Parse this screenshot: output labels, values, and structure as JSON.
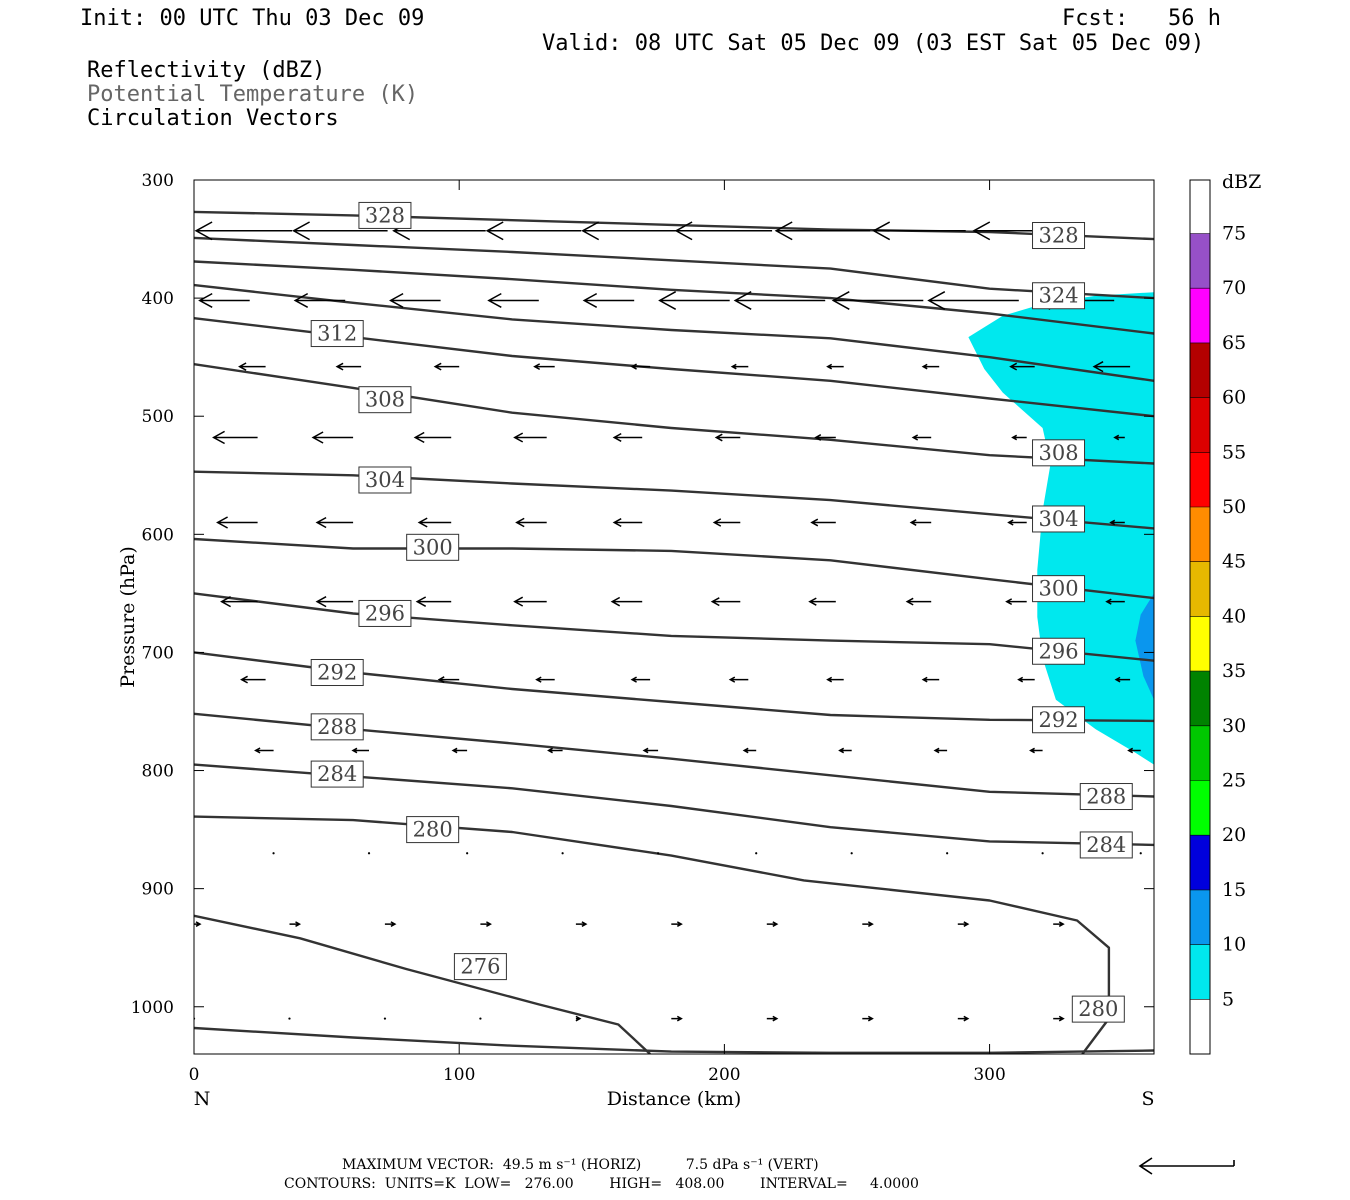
{
  "header": {
    "init": "Init: 00 UTC Thu 03 Dec 09",
    "fcst": "Fcst:   56 h",
    "valid": "Valid: 08 UTC Sat 05 Dec 09 (03 EST Sat 05 Dec 09)"
  },
  "fields": {
    "reflectivity": "Reflectivity (dBZ)",
    "theta": "Potential Temperature (K)",
    "vectors": "Circulation Vectors"
  },
  "footer": {
    "max_vector": "MAXIMUM VECTOR:  49.5 m s⁻¹ (HORIZ)          7.5 dPa s⁻¹ (VERT)",
    "contours": "CONTOURS:  UNITS=K  LOW=   276.00        HIGH=   408.00        INTERVAL=     4.0000"
  },
  "colors": {
    "contour": "#333333",
    "dbz_5": "#00e8ee",
    "dbz_10": "#0a96ee"
  },
  "chart_data": {
    "type": "cross-section",
    "xlabel": "Distance (km)",
    "ylabel": "Pressure (hPa)",
    "xlim": [
      0,
      362
    ],
    "ylim": [
      1040,
      300
    ],
    "y_log_scale": false,
    "x_ticks": [
      0,
      100,
      200,
      300
    ],
    "y_ticks": [
      300,
      400,
      500,
      600,
      700,
      800,
      900,
      1000
    ],
    "x_end_labels": {
      "left": "N",
      "right": "S"
    },
    "colorbar": {
      "title": "dBZ",
      "levels": [
        5,
        10,
        15,
        20,
        25,
        30,
        35,
        40,
        45,
        50,
        55,
        60,
        65,
        70,
        75
      ],
      "colors": [
        "#ffffff",
        "#00e8ee",
        "#0a96ee",
        "#0000dd",
        "#00ff00",
        "#00c800",
        "#008200",
        "#ffff00",
        "#e6b800",
        "#ff8c00",
        "#ff0000",
        "#dd0000",
        "#b40000",
        "#ff00ff",
        "#9650c8",
        "#ffffff"
      ]
    },
    "reflectivity_regions": [
      {
        "dbz": 5,
        "outline": [
          [
            292,
            433
          ],
          [
            305,
            415
          ],
          [
            320,
            405
          ],
          [
            340,
            398
          ],
          [
            362,
            395
          ],
          [
            362,
            795
          ],
          [
            355,
            785
          ],
          [
            340,
            765
          ],
          [
            325,
            740
          ],
          [
            320,
            705
          ],
          [
            318,
            670
          ],
          [
            318,
            630
          ],
          [
            320,
            580
          ],
          [
            323,
            540
          ],
          [
            320,
            510
          ],
          [
            305,
            480
          ],
          [
            298,
            460
          ]
        ]
      },
      {
        "dbz": 10,
        "outline": [
          [
            362,
            650
          ],
          [
            357,
            668
          ],
          [
            355,
            690
          ],
          [
            358,
            720
          ],
          [
            362,
            740
          ]
        ]
      }
    ],
    "isentropes": [
      {
        "theta": 276,
        "points": [
          [
            0,
            923
          ],
          [
            40,
            942
          ],
          [
            80,
            968
          ],
          [
            130,
            998
          ],
          [
            160,
            1015
          ],
          [
            172,
            1040
          ]
        ]
      },
      {
        "theta": 280,
        "points": [
          [
            0,
            839
          ],
          [
            60,
            842
          ],
          [
            120,
            852
          ],
          [
            180,
            872
          ],
          [
            230,
            893
          ],
          [
            300,
            910
          ],
          [
            333,
            927
          ],
          [
            345,
            950
          ],
          [
            345,
            1010
          ],
          [
            335,
            1040
          ]
        ]
      },
      {
        "theta": 280,
        "points": [
          [
            0,
            1018
          ],
          [
            60,
            1026
          ],
          [
            120,
            1033
          ],
          [
            180,
            1038
          ],
          [
            240,
            1039
          ],
          [
            300,
            1039
          ],
          [
            362,
            1037
          ]
        ]
      },
      {
        "theta": 284,
        "points": [
          [
            0,
            795
          ],
          [
            60,
            805
          ],
          [
            120,
            815
          ],
          [
            180,
            830
          ],
          [
            240,
            848
          ],
          [
            300,
            860
          ],
          [
            362,
            863
          ]
        ]
      },
      {
        "theta": 288,
        "points": [
          [
            0,
            752
          ],
          [
            60,
            765
          ],
          [
            120,
            777
          ],
          [
            180,
            790
          ],
          [
            240,
            804
          ],
          [
            300,
            818
          ],
          [
            362,
            822
          ]
        ]
      },
      {
        "theta": 292,
        "points": [
          [
            0,
            700
          ],
          [
            60,
            717
          ],
          [
            120,
            731
          ],
          [
            180,
            742
          ],
          [
            240,
            753
          ],
          [
            300,
            757
          ],
          [
            362,
            758
          ]
        ]
      },
      {
        "theta": 296,
        "points": [
          [
            0,
            650
          ],
          [
            60,
            667
          ],
          [
            120,
            677
          ],
          [
            180,
            686
          ],
          [
            240,
            690
          ],
          [
            300,
            693
          ],
          [
            362,
            707
          ]
        ]
      },
      {
        "theta": 300,
        "points": [
          [
            0,
            604
          ],
          [
            60,
            612
          ],
          [
            120,
            612
          ],
          [
            180,
            614
          ],
          [
            240,
            622
          ],
          [
            300,
            638
          ],
          [
            362,
            654
          ]
        ]
      },
      {
        "theta": 304,
        "points": [
          [
            0,
            547
          ],
          [
            60,
            550
          ],
          [
            120,
            557
          ],
          [
            180,
            563
          ],
          [
            240,
            571
          ],
          [
            300,
            583
          ],
          [
            362,
            595
          ]
        ]
      },
      {
        "theta": 308,
        "points": [
          [
            0,
            456
          ],
          [
            60,
            476
          ],
          [
            120,
            497
          ],
          [
            180,
            510
          ],
          [
            240,
            520
          ],
          [
            300,
            533
          ],
          [
            362,
            540
          ]
        ]
      },
      {
        "theta": 312,
        "points": [
          [
            0,
            417
          ],
          [
            60,
            433
          ],
          [
            120,
            449
          ],
          [
            180,
            460
          ],
          [
            240,
            470
          ],
          [
            300,
            485
          ],
          [
            362,
            500
          ]
        ]
      },
      {
        "theta": 316,
        "points": [
          [
            0,
            389
          ],
          [
            60,
            404
          ],
          [
            120,
            418
          ],
          [
            180,
            427
          ],
          [
            240,
            434
          ],
          [
            300,
            450
          ],
          [
            362,
            470
          ]
        ]
      },
      {
        "theta": 320,
        "points": [
          [
            0,
            369
          ],
          [
            60,
            376
          ],
          [
            120,
            384
          ],
          [
            180,
            393
          ],
          [
            240,
            400
          ],
          [
            300,
            413
          ],
          [
            362,
            430
          ]
        ]
      },
      {
        "theta": 324,
        "points": [
          [
            0,
            349
          ],
          [
            60,
            355
          ],
          [
            120,
            361
          ],
          [
            180,
            368
          ],
          [
            240,
            375
          ],
          [
            300,
            392
          ],
          [
            362,
            400
          ]
        ]
      },
      {
        "theta": 328,
        "points": [
          [
            0,
            327
          ],
          [
            60,
            330
          ],
          [
            120,
            334
          ],
          [
            180,
            338
          ],
          [
            240,
            342
          ],
          [
            300,
            344
          ],
          [
            362,
            350
          ]
        ]
      }
    ],
    "isentrope_labels": [
      {
        "text": "328",
        "x": 72,
        "p": 330
      },
      {
        "text": "328",
        "x": 326,
        "p": 347
      },
      {
        "text": "324",
        "x": 326,
        "p": 398
      },
      {
        "text": "312",
        "x": 54,
        "p": 430
      },
      {
        "text": "308",
        "x": 72,
        "p": 486
      },
      {
        "text": "304",
        "x": 72,
        "p": 554
      },
      {
        "text": "308",
        "x": 326,
        "p": 531
      },
      {
        "text": "304",
        "x": 326,
        "p": 587
      },
      {
        "text": "300",
        "x": 90,
        "p": 611
      },
      {
        "text": "296",
        "x": 72,
        "p": 667
      },
      {
        "text": "300",
        "x": 326,
        "p": 646
      },
      {
        "text": "296",
        "x": 326,
        "p": 699
      },
      {
        "text": "292",
        "x": 54,
        "p": 717
      },
      {
        "text": "292",
        "x": 326,
        "p": 757
      },
      {
        "text": "288",
        "x": 54,
        "p": 763
      },
      {
        "text": "284",
        "x": 54,
        "p": 803
      },
      {
        "text": "288",
        "x": 344,
        "p": 822
      },
      {
        "text": "280",
        "x": 90,
        "p": 850
      },
      {
        "text": "284",
        "x": 344,
        "p": 863
      },
      {
        "text": "276",
        "x": 108,
        "p": 966
      },
      {
        "text": "280",
        "x": 341,
        "p": 1002
      }
    ],
    "vector_rows": [
      {
        "p": 343,
        "x": [
          0,
          37,
          73,
          110,
          146,
          182,
          218,
          255,
          291,
          328
        ],
        "u": [
          -5.0,
          -4.8,
          -4.7,
          -4.6,
          -4.7,
          -4.7,
          -4.8,
          -4.7,
          -4.6,
          -4.5
        ],
        "w": [
          0,
          0,
          0,
          0,
          0,
          0,
          0,
          0,
          0,
          0
        ]
      },
      {
        "p": 402,
        "x": [
          21,
          57,
          93,
          130,
          166,
          202,
          238,
          275,
          311,
          347
        ],
        "u": [
          -2.5,
          -2.5,
          -2.5,
          -2.5,
          -2.5,
          -3.5,
          -4.5,
          -4.5,
          -4.5,
          -4.0
        ],
        "w": [
          0,
          0,
          0,
          0,
          0,
          0,
          0,
          0,
          0,
          0
        ]
      },
      {
        "p": 458,
        "x": [
          27,
          63,
          100,
          136,
          172,
          209,
          245,
          281,
          317,
          353
        ],
        "u": [
          -1.3,
          -1.2,
          -1.2,
          -1.0,
          -0.9,
          -0.8,
          -0.8,
          -0.8,
          -1.2,
          -1.8
        ],
        "w": [
          0,
          0,
          0,
          0,
          0,
          0,
          0,
          0,
          0,
          0
        ]
      },
      {
        "p": 518,
        "x": [
          24,
          60,
          97,
          133,
          169,
          206,
          242,
          278,
          314,
          351
        ],
        "u": [
          -2.2,
          -2.0,
          -1.8,
          -1.6,
          -1.4,
          -1.2,
          -1.0,
          -0.9,
          -0.7,
          -0.5
        ],
        "w": [
          0,
          0,
          0,
          0,
          0,
          0,
          0,
          0,
          0,
          0
        ]
      },
      {
        "p": 590,
        "x": [
          24,
          60,
          97,
          133,
          169,
          206,
          242,
          278,
          314,
          351
        ],
        "u": [
          -2.0,
          -1.8,
          -1.6,
          -1.5,
          -1.4,
          -1.3,
          -1.2,
          -1.0,
          -0.9,
          -0.7
        ],
        "w": [
          0,
          0,
          0,
          0,
          0,
          0,
          0,
          0,
          0,
          0
        ]
      },
      {
        "p": 657,
        "x": [
          24,
          60,
          97,
          133,
          169,
          206,
          242,
          278,
          314,
          351
        ],
        "u": [
          -1.8,
          -1.8,
          -1.7,
          -1.6,
          -1.5,
          -1.4,
          -1.3,
          -1.2,
          -1.0,
          -0.9
        ],
        "w": [
          0,
          0,
          0,
          0,
          0,
          0,
          0,
          0,
          0,
          0
        ]
      },
      {
        "p": 723,
        "x": [
          27,
          63,
          100,
          136,
          172,
          209,
          245,
          281,
          317,
          353
        ],
        "u": [
          -1.2,
          -1.1,
          -1.0,
          -0.9,
          -0.9,
          -0.9,
          -0.8,
          -0.8,
          -0.8,
          -0.7
        ],
        "w": [
          0,
          0,
          0,
          0,
          0,
          0,
          0,
          0,
          0,
          0
        ]
      },
      {
        "p": 783,
        "x": [
          30,
          66,
          103,
          139,
          175,
          212,
          248,
          284,
          320,
          357
        ],
        "u": [
          -0.9,
          -0.8,
          -0.7,
          -0.7,
          -0.7,
          -0.6,
          -0.6,
          -0.6,
          -0.6,
          -0.6
        ],
        "w": [
          0,
          0,
          0,
          0,
          0,
          0,
          0,
          0,
          0,
          0
        ]
      },
      {
        "p": 870,
        "x": [
          30,
          66,
          103,
          139,
          175,
          212,
          248,
          284,
          320,
          357
        ],
        "u": [
          0.0,
          0.0,
          0.0,
          0.0,
          0.0,
          0.0,
          0.0,
          0.0,
          0.0,
          0.0
        ],
        "w": [
          0,
          0,
          0,
          0,
          0,
          0,
          0,
          0,
          0,
          0
        ]
      },
      {
        "p": 930,
        "x": [
          0,
          36,
          72,
          108,
          144,
          180,
          216,
          252,
          288,
          324
        ],
        "u": [
          0.3,
          0.5,
          0.5,
          0.5,
          0.5,
          0.5,
          0.5,
          0.5,
          0.5,
          0.5
        ],
        "w": [
          0,
          0,
          0,
          0,
          0,
          0,
          0,
          0,
          0,
          0
        ]
      },
      {
        "p": 1010,
        "x": [
          0,
          36,
          72,
          108,
          144,
          180,
          216,
          252,
          288,
          324
        ],
        "u": [
          0.0,
          0.0,
          0.0,
          0.0,
          0.2,
          0.5,
          0.5,
          0.5,
          0.5,
          0.5
        ],
        "w": [
          0,
          0,
          0,
          0,
          0,
          0,
          0,
          0,
          0,
          0
        ]
      }
    ]
  }
}
